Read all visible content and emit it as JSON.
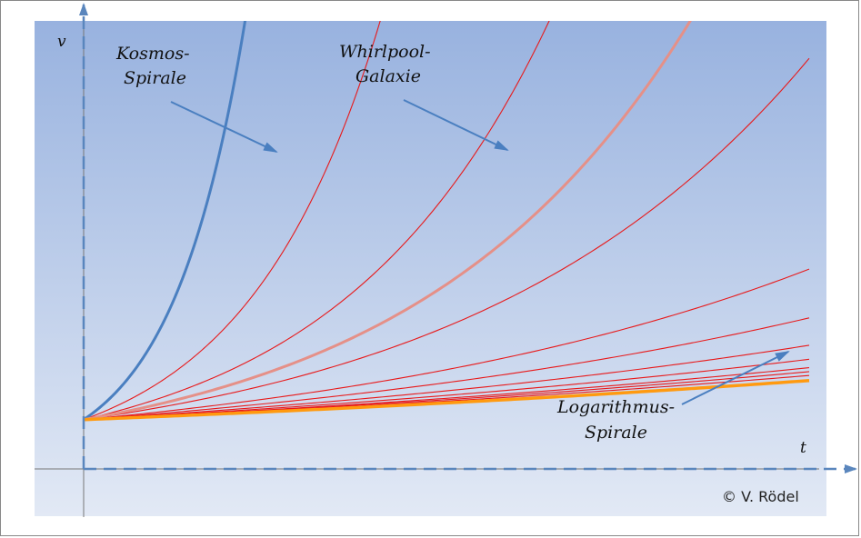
{
  "chart_data": {
    "type": "line",
    "title": "",
    "xlabel": "t",
    "ylabel": "v",
    "xlim": [
      0,
      8
    ],
    "ylim": [
      0,
      5
    ],
    "grid": false,
    "legend": "none",
    "v0": 0.55,
    "t_end": 8,
    "family_growth_rates": [
      0.675,
      0.43,
      0.265,
      0.175,
      0.14,
      0.115,
      0.1,
      0.09,
      0.085,
      0.08
    ],
    "series": [
      {
        "role": "kosmos",
        "growth_rate": 1.24,
        "color": "#4a7fc0"
      },
      {
        "role": "whirlpool",
        "growth_rate": 0.33,
        "color": "#e59088"
      },
      {
        "role": "logarithmus",
        "growth_rate": 0.073,
        "color": "#ff9a10"
      }
    ],
    "annotations": [
      {
        "id": "kosmos",
        "lines": [
          "Kosmos-",
          "Spirale"
        ]
      },
      {
        "id": "whirlpool",
        "lines": [
          "Whirlpool-",
          "Galaxie"
        ]
      },
      {
        "id": "logarithmus",
        "lines": [
          "Logarithmus-",
          "Spirale"
        ]
      }
    ],
    "family_color": "#e8191a"
  },
  "copyright": "© V. Rödel",
  "colors": {
    "bg_top": "#98b2df",
    "bg_bottom": "#e2e9f5",
    "axis": "#5a86bd",
    "arrow": "#4a7fc0"
  }
}
